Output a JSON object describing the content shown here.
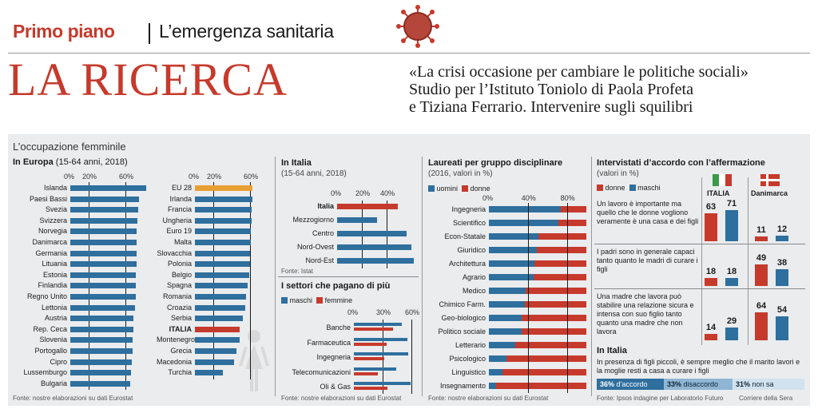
{
  "header": {
    "kicker_section": "Primo piano",
    "kicker_topic": "L’emergenza sanitaria",
    "headline": "LA RICERCA",
    "subhead": [
      "«La crisi occasione per cambiare le politiche sociali»",
      "Studio per l’Istituto Toniolo di Paola Profeta",
      "e Tiziana Ferrario. Intervenire sugli squilibri"
    ]
  },
  "panel_title": "L’occupazione femminile",
  "europe": {
    "title": "In Europa",
    "subtitle": "(15-64 anni, 2018)",
    "ticks": [
      "0%",
      "20%",
      "60%"
    ],
    "ticks2": [
      "0%",
      "20%",
      "60%"
    ],
    "source": "Fonte: nostre elaborazioni su dati Eurostat"
  },
  "italy": {
    "title": "In Italia",
    "subtitle": "(15-64 anni, 2018)",
    "ticks": [
      "0%",
      "20%",
      "40%"
    ],
    "source": "Fonte: Istat"
  },
  "sectors": {
    "title": "I settori che pagano di più",
    "legend": [
      "maschi",
      "femmine"
    ],
    "ticks": [
      "0%",
      "30%",
      "60%"
    ],
    "source": "Fonte: nostre elaborazioni su dati Eurostat"
  },
  "graduates": {
    "title": "Laureati per gruppo disciplinare",
    "subtitle": "(2016, valori in %)",
    "legend": [
      "uomini",
      "donne"
    ],
    "ticks": [
      "0%",
      "40%",
      "80%"
    ],
    "source": "Fonte: nostre elaborazioni su dati Eurostat"
  },
  "survey": {
    "title": "Intervistati d’accordo con l’affermazione",
    "subtitle": "(valori in %)",
    "legend": [
      "donne",
      "maschi"
    ],
    "countries": [
      "ITALIA",
      "Danimarca"
    ],
    "statements": [
      "Un lavoro è importante ma quello che le donne vogliono veramente è una casa e dei figli",
      "I padri sono in generale capaci tanto quanto le madri di curare i figli",
      "Una madre che lavora può stabilire una relazione sicura e intensa con suo figlio tanto quanto una madre che non lavora"
    ],
    "italy_title": "In Italia",
    "italy_text": "In presenza di figli piccoli, è sempre meglio che il marito lavori e la moglie resti a casa a curare i figli",
    "agree": "36%",
    "agree_label": "d’accordo",
    "disagree": "33%",
    "disagree_label": "disaccordo",
    "unsure": "31%",
    "unsure_label": "non sa",
    "source": "Fonte: Ipsos indagine per Laboratorio Futuro",
    "credit": "Corriere della Sera"
  },
  "colors": {
    "blue": "#2e6f9e",
    "red": "#c63a2c",
    "orange": "#e8a033"
  },
  "chart_data": [
    {
      "type": "bar",
      "title": "In Europa",
      "categories": [
        "Islanda",
        "Paesi Bassi",
        "Svezia",
        "Svizzera",
        "Norvegia",
        "Danimarca",
        "Germania",
        "Lituania",
        "Estonia",
        "Finlandia",
        "Regno Unito",
        "Lettonia",
        "Austria",
        "Rep. Ceca",
        "Slovenia",
        "Portogallo",
        "Cipro",
        "Lussemburgo",
        "Bulgaria"
      ],
      "values": [
        83,
        75,
        74,
        73,
        72,
        72,
        72,
        72,
        71,
        71,
        71,
        70,
        69,
        69,
        68,
        68,
        67,
        66,
        65
      ]
    },
    {
      "type": "bar",
      "title": "In Europa (2)",
      "categories": [
        "EU 28",
        "Irlanda",
        "Francia",
        "Ungheria",
        "Euro 19",
        "Malta",
        "Slovacchia",
        "Polonia",
        "Belgio",
        "Spagna",
        "Romania",
        "Croazia",
        "Serbia",
        "ITALIA",
        "Montenegro",
        "Grecia",
        "Macedonia",
        "Turchia"
      ],
      "values": [
        63,
        63,
        62,
        62,
        61,
        61,
        60,
        60,
        59,
        57,
        56,
        55,
        52,
        49,
        49,
        45,
        43,
        30
      ]
    },
    {
      "type": "bar",
      "title": "In Italia",
      "categories": [
        "Italia",
        "Mezzogiorno",
        "Centro",
        "Nord-Ovest",
        "Nord-Est"
      ],
      "values": [
        49,
        32,
        56,
        60,
        62
      ]
    },
    {
      "type": "bar",
      "title": "I settori che pagano di più",
      "categories": [
        "Banche",
        "Farmaceutica",
        "Ingegneria",
        "Telecomunicazioni",
        "Oli & Gas"
      ],
      "series": [
        {
          "name": "maschi",
          "values": [
            50,
            56,
            57,
            44,
            59
          ]
        },
        {
          "name": "femmine",
          "values": [
            41,
            34,
            32,
            25,
            35
          ]
        }
      ]
    },
    {
      "type": "bar",
      "title": "Laureati per gruppo disciplinare",
      "categories": [
        "Ingegneria",
        "Scientifico",
        "Econ-Statale",
        "Giuridico",
        "Architettura",
        "Agrario",
        "Medico",
        "Chimico Farm.",
        "Geo-biologico",
        "Politico sociale",
        "Letterario",
        "Psicologico",
        "Linguistico",
        "Insegnamento"
      ],
      "series": [
        {
          "name": "uomini",
          "values": [
            74,
            71,
            51,
            49,
            47,
            46,
            38,
            37,
            34,
            34,
            27,
            18,
            14,
            7
          ]
        },
        {
          "name": "donne",
          "values": [
            26,
            29,
            49,
            51,
            53,
            54,
            62,
            63,
            66,
            66,
            73,
            82,
            86,
            93
          ]
        }
      ]
    },
    {
      "type": "bar",
      "title": "Intervistati d’accordo con l’affermazione",
      "categories": [
        "ITALIA",
        "Danimarca"
      ],
      "series": [
        {
          "name": "s1 donne",
          "values": [
            63,
            11
          ]
        },
        {
          "name": "s1 maschi",
          "values": [
            71,
            12
          ]
        },
        {
          "name": "s2 donne",
          "values": [
            18,
            49
          ]
        },
        {
          "name": "s2 maschi",
          "values": [
            18,
            38
          ]
        },
        {
          "name": "s3 donne",
          "values": [
            14,
            64
          ]
        },
        {
          "name": "s3 maschi",
          "values": [
            29,
            54
          ]
        }
      ]
    }
  ]
}
